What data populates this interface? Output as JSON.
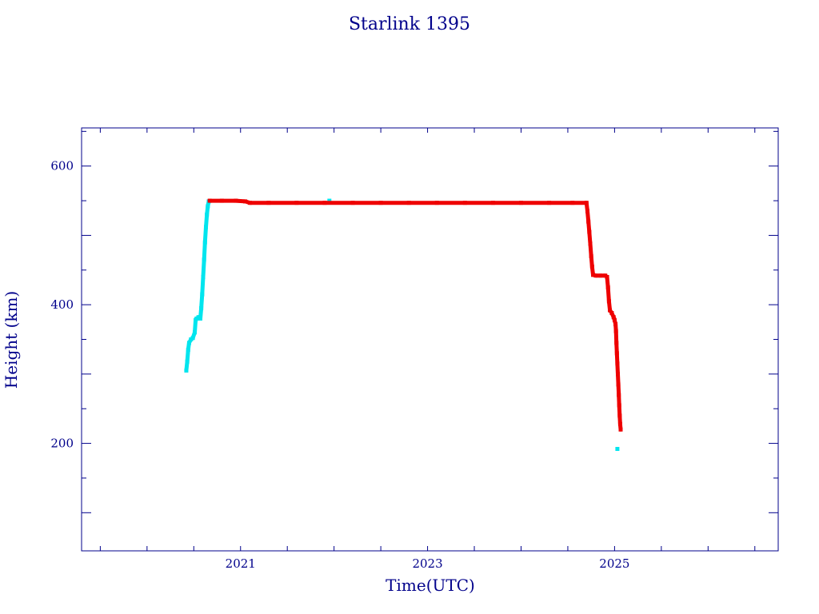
{
  "chart_data": {
    "type": "scatter",
    "title": "Starlink 1395",
    "xlabel": "Time(UTC)",
    "ylabel": "Height (km)",
    "xlim": [
      2019.3,
      2026.75
    ],
    "ylim": [
      45,
      655
    ],
    "x_ticks": [
      {
        "value": 2021,
        "label": "2021"
      },
      {
        "value": 2023,
        "label": "2023"
      },
      {
        "value": 2025,
        "label": "2025"
      }
    ],
    "y_ticks": [
      {
        "value": 200,
        "label": "200"
      },
      {
        "value": 400,
        "label": "400"
      },
      {
        "value": 600,
        "label": "600"
      }
    ],
    "grid": false,
    "colors": {
      "axes": "#00008b",
      "raising": "#00e5ee",
      "operational": "#ee0000"
    },
    "series": [
      {
        "color": "#00e5ee",
        "points": [
          [
            2020.42,
            305
          ],
          [
            2020.43,
            318
          ],
          [
            2020.44,
            335
          ],
          [
            2020.45,
            345
          ],
          [
            2020.47,
            350
          ],
          [
            2020.49,
            352
          ],
          [
            2020.51,
            360
          ],
          [
            2020.52,
            378
          ],
          [
            2020.53,
            380
          ],
          [
            2020.55,
            382
          ],
          [
            2020.57,
            380
          ],
          [
            2020.58,
            395
          ],
          [
            2020.59,
            415
          ],
          [
            2020.6,
            440
          ],
          [
            2020.61,
            465
          ],
          [
            2020.62,
            490
          ],
          [
            2020.63,
            512
          ],
          [
            2020.64,
            530
          ],
          [
            2020.65,
            542
          ],
          [
            2020.66,
            549
          ],
          [
            2021.95,
            550
          ],
          [
            2025.03,
            192
          ]
        ]
      },
      {
        "color": "#ee0000",
        "points": [
          [
            2020.67,
            550
          ],
          [
            2020.8,
            550
          ],
          [
            2020.95,
            550
          ],
          [
            2021.05,
            549
          ],
          [
            2021.1,
            547
          ],
          [
            2021.3,
            547
          ],
          [
            2021.6,
            547
          ],
          [
            2021.9,
            547
          ],
          [
            2022.2,
            547
          ],
          [
            2022.5,
            547
          ],
          [
            2022.8,
            547
          ],
          [
            2023.1,
            547
          ],
          [
            2023.4,
            547
          ],
          [
            2023.7,
            547
          ],
          [
            2024.0,
            547
          ],
          [
            2024.3,
            547
          ],
          [
            2024.55,
            547
          ],
          [
            2024.7,
            547
          ],
          [
            2024.71,
            535
          ],
          [
            2024.72,
            520
          ],
          [
            2024.73,
            505
          ],
          [
            2024.74,
            488
          ],
          [
            2024.75,
            470
          ],
          [
            2024.76,
            455
          ],
          [
            2024.77,
            443
          ],
          [
            2024.8,
            442
          ],
          [
            2024.85,
            442
          ],
          [
            2024.9,
            442
          ],
          [
            2024.92,
            440
          ],
          [
            2024.93,
            425
          ],
          [
            2024.94,
            405
          ],
          [
            2024.95,
            392
          ],
          [
            2024.97,
            388
          ],
          [
            2024.99,
            382
          ],
          [
            2025.0,
            378
          ],
          [
            2025.01,
            372
          ],
          [
            2025.015,
            362
          ],
          [
            2025.02,
            345
          ],
          [
            2025.025,
            330
          ],
          [
            2025.03,
            315
          ],
          [
            2025.035,
            300
          ],
          [
            2025.04,
            285
          ],
          [
            2025.045,
            270
          ],
          [
            2025.05,
            255
          ],
          [
            2025.055,
            240
          ],
          [
            2025.06,
            228
          ],
          [
            2025.065,
            220
          ]
        ]
      }
    ]
  }
}
